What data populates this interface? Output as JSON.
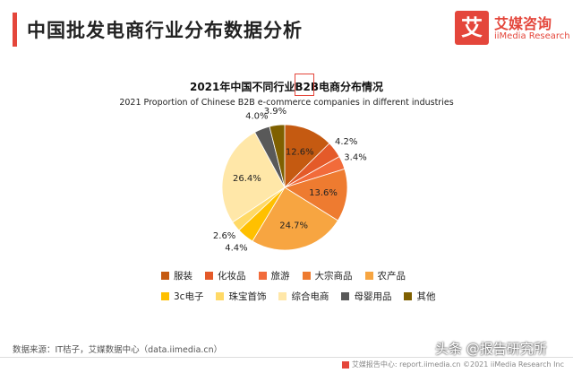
{
  "header": {
    "title": "中国批发电商行业分布数据分析",
    "brand_cn": "艾媒咨询",
    "brand_en": "iiMedia Research",
    "brand_glyph": "艾"
  },
  "colors": {
    "accent": "#e4463b"
  },
  "chart_data": {
    "type": "pie",
    "title": "2021年中国不同行业B2B电商分布情况",
    "subtitle": "2021 Proportion of Chinese B2B e-commerce companies in different industries",
    "slices": [
      {
        "name": "服装",
        "value": 12.6,
        "label": "12.6%",
        "color": "#c55a11"
      },
      {
        "name": "化妆品",
        "value": 4.2,
        "label": "4.2%",
        "color": "#e45a29"
      },
      {
        "name": "旅游",
        "value": 3.4,
        "label": "3.4%",
        "color": "#f26b3a"
      },
      {
        "name": "大宗商品",
        "value": 13.6,
        "label": "13.6%",
        "color": "#ee7b30"
      },
      {
        "name": "农产品",
        "value": 24.7,
        "label": "24.7%",
        "color": "#f7a541"
      },
      {
        "name": "3c电子",
        "value": 4.4,
        "label": "4.4%",
        "color": "#ffc000"
      },
      {
        "name": "珠宝首饰",
        "value": 2.6,
        "label": "2.6%",
        "color": "#ffd966"
      },
      {
        "name": "综合电商",
        "value": 26.4,
        "label": "26.4%",
        "color": "#ffe7a8"
      },
      {
        "name": "母婴用品",
        "value": 4.0,
        "label": "4.0%",
        "color": "#595959"
      },
      {
        "name": "其他",
        "value": 3.9,
        "label": "3.9%",
        "color": "#7f6000"
      }
    ]
  },
  "source": "数据来源：IT桔子，艾媒数据中心（data.iimedia.cn）",
  "footer": "艾媒报告中心: report.iimedia.cn   ©2021   iiMedia Research  Inc",
  "watermark": "头条 @报告研究所"
}
